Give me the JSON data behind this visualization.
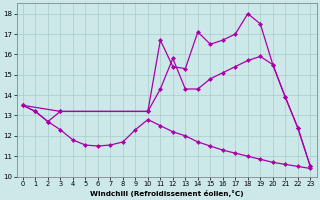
{
  "background_color": "#cce8e8",
  "grid_color": "#aacccc",
  "line_color": "#aa00aa",
  "xlim": [
    -0.5,
    23.5
  ],
  "ylim": [
    10,
    18.5
  ],
  "yticks": [
    10,
    11,
    12,
    13,
    14,
    15,
    16,
    17,
    18
  ],
  "xticks": [
    0,
    1,
    2,
    3,
    4,
    5,
    6,
    7,
    8,
    9,
    10,
    11,
    12,
    13,
    14,
    15,
    16,
    17,
    18,
    19,
    20,
    21,
    22,
    23
  ],
  "xlabel": "Windchill (Refroidissement éolien,°C)",
  "top_x": [
    0,
    1,
    2,
    3,
    10,
    11,
    12,
    13,
    14,
    15,
    16,
    17,
    18,
    19,
    20,
    21,
    22,
    23
  ],
  "top_y": [
    13.5,
    13.2,
    12.7,
    13.2,
    13.2,
    16.7,
    15.4,
    15.3,
    17.1,
    16.5,
    16.7,
    17.0,
    18.0,
    17.5,
    15.5,
    13.9,
    12.4,
    10.5
  ],
  "mid_x": [
    0,
    3,
    10,
    11,
    12,
    13,
    14,
    15,
    16,
    17,
    18,
    19,
    20,
    21,
    22,
    23
  ],
  "mid_y": [
    13.5,
    13.2,
    13.2,
    14.3,
    15.8,
    14.3,
    14.3,
    14.8,
    15.1,
    15.4,
    15.7,
    15.9,
    15.5,
    13.9,
    12.4,
    10.5
  ],
  "bot_x": [
    0,
    1,
    2,
    3,
    4,
    5,
    6,
    7,
    8,
    9,
    10,
    11,
    12,
    13,
    14,
    15,
    16,
    17,
    18,
    19,
    20,
    21,
    22,
    23
  ],
  "bot_y": [
    13.5,
    13.2,
    12.7,
    12.3,
    11.8,
    11.55,
    11.5,
    11.55,
    11.7,
    12.3,
    12.8,
    12.5,
    12.2,
    12.0,
    11.7,
    11.5,
    11.3,
    11.15,
    11.0,
    10.85,
    10.7,
    10.6,
    10.5,
    10.4
  ]
}
